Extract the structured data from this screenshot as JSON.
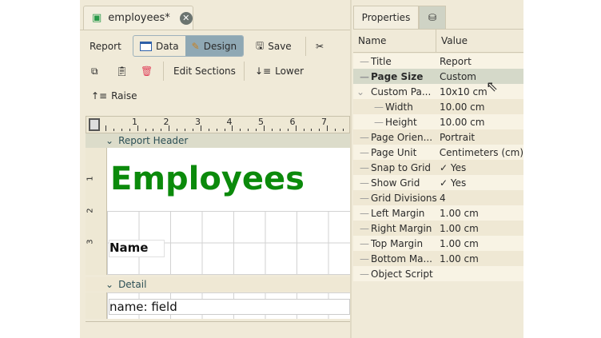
{
  "tab": {
    "title": "employees*",
    "icon": "report-icon"
  },
  "toolbar": {
    "report": "Report",
    "data": "Data",
    "design": "Design",
    "save": "Save",
    "edit_sections": "Edit Sections",
    "lower": "Lower",
    "raise": "Raise"
  },
  "ruler": {
    "ticks": [
      "1",
      "2",
      "3",
      "4",
      "5",
      "6",
      "7"
    ],
    "vticks": [
      "1",
      "2",
      "3"
    ]
  },
  "sections": {
    "header": "Report Header",
    "detail": "Detail"
  },
  "canvas": {
    "title": "Employees",
    "name_label": "Name",
    "field": "name: field",
    "title_color": "#0b8a0b"
  },
  "props": {
    "tab": "Properties",
    "col_name": "Name",
    "col_value": "Value",
    "rows": [
      {
        "name": "Title",
        "value": "Report",
        "level": 0
      },
      {
        "name": "Page Size",
        "value": "Custom",
        "level": 0,
        "bold": true,
        "selected": true
      },
      {
        "name": "Custom Pa...",
        "value": "10x10 cm",
        "level": 0,
        "expanded": true
      },
      {
        "name": "Width",
        "value": "10.00 cm",
        "level": 1
      },
      {
        "name": "Height",
        "value": "10.00 cm",
        "level": 1
      },
      {
        "name": "Page Orien...",
        "value": "Portrait",
        "level": 0
      },
      {
        "name": "Page Unit",
        "value": "Centimeters (cm)",
        "level": 0
      },
      {
        "name": "Snap to Grid",
        "value": "✓  Yes",
        "level": 0
      },
      {
        "name": "Show Grid",
        "value": "✓  Yes",
        "level": 0
      },
      {
        "name": "Grid Divisions",
        "value": "4",
        "level": 0
      },
      {
        "name": "Left Margin",
        "value": "1.00 cm",
        "level": 0
      },
      {
        "name": "Right Margin",
        "value": "1.00 cm",
        "level": 0
      },
      {
        "name": "Top Margin",
        "value": "1.00 cm",
        "level": 0
      },
      {
        "name": "Bottom Ma...",
        "value": "1.00 cm",
        "level": 0
      },
      {
        "name": "Object Script",
        "value": "",
        "level": 0
      }
    ]
  }
}
